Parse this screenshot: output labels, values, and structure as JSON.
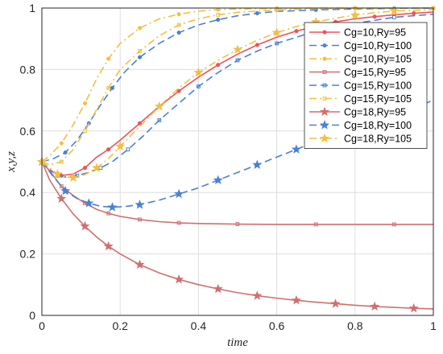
{
  "chart_data": {
    "type": "line",
    "xlabel": "time",
    "ylabel": "x,y,z",
    "xlim": [
      0,
      1
    ],
    "ylim": [
      0,
      1
    ],
    "xticks": [
      "0",
      "0.2",
      "0.4",
      "0.6",
      "0.8",
      "1"
    ],
    "yticks": [
      "0",
      "0.2",
      "0.4",
      "0.6",
      "0.8",
      "1"
    ],
    "grid": true,
    "legend": "top-right",
    "series": [
      {
        "name": "Cg=10,Ry=95",
        "color": "#f0505a",
        "line": "solid",
        "marker": "circle",
        "x": [
          0,
          0.02,
          0.05,
          0.08,
          0.11,
          0.14,
          0.17,
          0.2,
          0.25,
          0.3,
          0.35,
          0.4,
          0.45,
          0.5,
          0.55,
          0.6,
          0.65,
          0.7,
          0.75,
          0.8,
          0.85,
          0.9,
          0.95,
          1.0
        ],
        "y": [
          0.5,
          0.47,
          0.455,
          0.46,
          0.48,
          0.515,
          0.54,
          0.57,
          0.625,
          0.68,
          0.73,
          0.775,
          0.815,
          0.85,
          0.88,
          0.905,
          0.925,
          0.94,
          0.955,
          0.965,
          0.972,
          0.978,
          0.983,
          0.987
        ],
        "x_": null
      },
      {
        "name": "Cg=10,Ry=100",
        "color": "#4a80d9",
        "line": "dashed",
        "marker": "circle",
        "x": [
          0,
          0.03,
          0.06,
          0.09,
          0.12,
          0.15,
          0.18,
          0.21,
          0.25,
          0.3,
          0.35,
          0.4,
          0.45,
          0.5,
          0.55,
          0.6,
          0.7,
          0.8,
          0.9,
          1.0
        ],
        "y": [
          0.5,
          0.51,
          0.53,
          0.57,
          0.625,
          0.685,
          0.74,
          0.79,
          0.84,
          0.885,
          0.92,
          0.945,
          0.962,
          0.975,
          0.983,
          0.989,
          0.994,
          0.997,
          0.999,
          1.0
        ]
      },
      {
        "name": "Cg=10,Ry=105",
        "color": "#f2c041",
        "line": "dashdot",
        "marker": "circle",
        "x": [
          0,
          0.02,
          0.05,
          0.08,
          0.11,
          0.14,
          0.17,
          0.2,
          0.25,
          0.3,
          0.35,
          0.4,
          0.45,
          0.5,
          0.6,
          0.7,
          0.8,
          0.9,
          1.0
        ],
        "y": [
          0.5,
          0.52,
          0.56,
          0.62,
          0.69,
          0.77,
          0.835,
          0.885,
          0.935,
          0.965,
          0.98,
          0.99,
          0.995,
          0.997,
          0.999,
          1.0,
          1.0,
          1.0,
          1.0
        ]
      },
      {
        "name": "Cg=15,Ry=95",
        "color": "#d06f6f",
        "line": "solid",
        "marker": "square",
        "x": [
          0,
          0.02,
          0.05,
          0.08,
          0.11,
          0.14,
          0.17,
          0.2,
          0.25,
          0.3,
          0.35,
          0.4,
          0.5,
          0.6,
          0.7,
          0.8,
          0.9,
          1.0
        ],
        "y": [
          0.5,
          0.47,
          0.42,
          0.39,
          0.365,
          0.345,
          0.332,
          0.322,
          0.312,
          0.305,
          0.301,
          0.299,
          0.297,
          0.296,
          0.296,
          0.296,
          0.296,
          0.296
        ]
      },
      {
        "name": "Cg=15,Ry=100",
        "color": "#4a80d9",
        "line": "dashed",
        "marker": "square",
        "x": [
          0,
          0.02,
          0.04,
          0.06,
          0.09,
          0.12,
          0.15,
          0.18,
          0.22,
          0.26,
          0.3,
          0.35,
          0.4,
          0.45,
          0.5,
          0.55,
          0.6,
          0.65,
          0.7,
          0.8,
          0.9,
          1.0
        ],
        "y": [
          0.5,
          0.475,
          0.455,
          0.45,
          0.455,
          0.465,
          0.48,
          0.5,
          0.54,
          0.585,
          0.635,
          0.69,
          0.745,
          0.79,
          0.83,
          0.86,
          0.885,
          0.905,
          0.925,
          0.95,
          0.97,
          0.98
        ]
      },
      {
        "name": "Cg=15,Ry=105",
        "color": "#f2c041",
        "line": "dashdot",
        "marker": "square",
        "x": [
          0,
          0.02,
          0.05,
          0.08,
          0.11,
          0.14,
          0.17,
          0.2,
          0.25,
          0.3,
          0.35,
          0.4,
          0.45,
          0.5,
          0.6,
          0.7,
          0.8,
          0.9,
          1.0
        ],
        "y": [
          0.5,
          0.49,
          0.5,
          0.54,
          0.6,
          0.67,
          0.74,
          0.8,
          0.86,
          0.91,
          0.945,
          0.965,
          0.978,
          0.986,
          0.994,
          0.998,
          0.999,
          1.0,
          1.0
        ]
      },
      {
        "name": "Cg=18,Ry=95",
        "color": "#d06f6f",
        "line": "solid",
        "marker": "star",
        "x": [
          0,
          0.02,
          0.05,
          0.08,
          0.11,
          0.14,
          0.17,
          0.2,
          0.25,
          0.3,
          0.35,
          0.4,
          0.45,
          0.5,
          0.55,
          0.6,
          0.65,
          0.7,
          0.75,
          0.8,
          0.85,
          0.9,
          0.95,
          1.0
        ],
        "y": [
          0.5,
          0.44,
          0.38,
          0.33,
          0.29,
          0.255,
          0.225,
          0.2,
          0.165,
          0.138,
          0.117,
          0.1,
          0.086,
          0.074,
          0.064,
          0.056,
          0.049,
          0.043,
          0.038,
          0.033,
          0.029,
          0.026,
          0.023,
          0.021
        ]
      },
      {
        "name": "Cg=18,Ry=100",
        "color": "#4a80d9",
        "line": "dashed",
        "marker": "star",
        "x": [
          0,
          0.03,
          0.06,
          0.09,
          0.12,
          0.15,
          0.18,
          0.21,
          0.25,
          0.3,
          0.35,
          0.4,
          0.45,
          0.5,
          0.55,
          0.6,
          0.65,
          0.7,
          0.75,
          0.8,
          0.85,
          0.9,
          0.95,
          1.0
        ],
        "y": [
          0.5,
          0.45,
          0.405,
          0.38,
          0.365,
          0.355,
          0.352,
          0.354,
          0.36,
          0.375,
          0.395,
          0.415,
          0.44,
          0.465,
          0.49,
          0.515,
          0.54,
          0.565,
          0.59,
          0.61,
          0.63,
          0.655,
          0.675,
          0.7
        ]
      },
      {
        "name": "Cg=18,Ry=105",
        "color": "#f2c041",
        "line": "dashdot",
        "marker": "star",
        "x": [
          0,
          0.02,
          0.04,
          0.06,
          0.08,
          0.11,
          0.14,
          0.17,
          0.2,
          0.25,
          0.3,
          0.35,
          0.4,
          0.45,
          0.5,
          0.55,
          0.6,
          0.65,
          0.7,
          0.75,
          0.8,
          0.85,
          0.9,
          1.0
        ],
        "y": [
          0.5,
          0.48,
          0.46,
          0.45,
          0.448,
          0.458,
          0.48,
          0.51,
          0.55,
          0.615,
          0.68,
          0.74,
          0.79,
          0.83,
          0.865,
          0.895,
          0.92,
          0.94,
          0.955,
          0.967,
          0.977,
          0.985,
          0.99,
          0.995
        ]
      }
    ]
  }
}
